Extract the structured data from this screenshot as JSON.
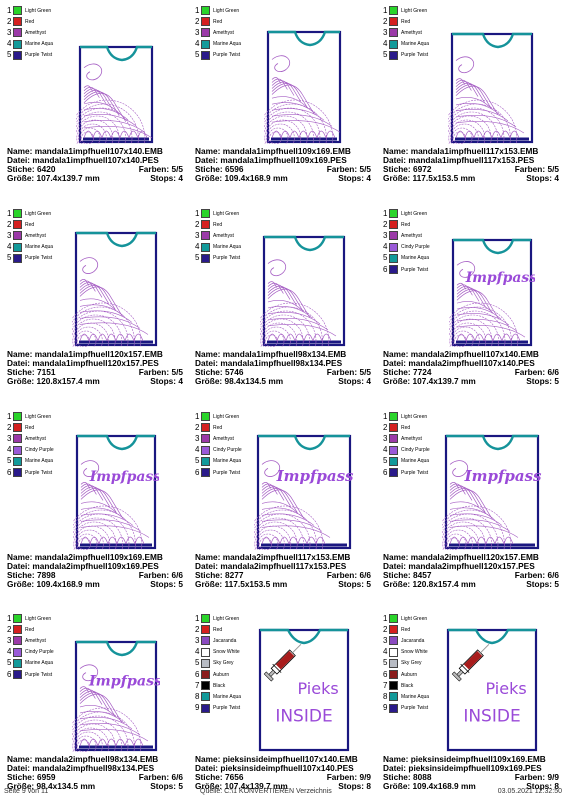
{
  "labels": {
    "name": "Name:",
    "datei": "Datei:",
    "stiche": "Stiche:",
    "farben": "Farben:",
    "groesse": "Größe:",
    "stops": "Stops:"
  },
  "colors": {
    "Light Green": "#2ad42a",
    "Red": "#d42020",
    "Amethyst": "#9b3aa8",
    "Marine Aqua": "#139a9a",
    "Purple Twist": "#2a1a8a",
    "Cindy Purple": "#9a5ad8",
    "Jacaranda": "#8a4ac0",
    "Snow White": "#ffffff",
    "Sky Grey": "#b8bcc4",
    "Auburn": "#8a1c1c",
    "Black": "#000000"
  },
  "footer": {
    "page": "Seite 9 von 11",
    "source": "Quelle: C:\\1 KONVERTIEREN Verzeichnis",
    "date": "03.05.2021 12:32:50"
  },
  "cells": [
    {
      "legend": [
        "Light Green",
        "Red",
        "Amethyst",
        "Marine Aqua",
        "Purple Twist"
      ],
      "type": "m1",
      "w": 72,
      "h": 95,
      "name": "mandala1impfhuell107x140.EMB",
      "datei": "mandala1impfhuell107x140.PES",
      "stiche": "6420",
      "farben": "5/5",
      "groesse": "107.4x139.7 mm",
      "stops": "4"
    },
    {
      "legend": [
        "Light Green",
        "Red",
        "Amethyst",
        "Marine Aqua",
        "Purple Twist"
      ],
      "type": "m1",
      "w": 72,
      "h": 110,
      "name": "mandala1impfhuell109x169.EMB",
      "datei": "mandala1impfhuell109x169.PES",
      "stiche": "6596",
      "farben": "5/5",
      "groesse": "109.4x168.9 mm",
      "stops": "4"
    },
    {
      "legend": [
        "Light Green",
        "Red",
        "Amethyst",
        "Marine Aqua",
        "Purple Twist"
      ],
      "type": "m1",
      "w": 80,
      "h": 108,
      "name": "mandala1impfhuell117x153.EMB",
      "datei": "mandala1impfhuell117x153.PES",
      "stiche": "6972",
      "farben": "5/5",
      "groesse": "117.5x153.5 mm",
      "stops": "4"
    },
    {
      "legend": [
        "Light Green",
        "Red",
        "Amethyst",
        "Marine Aqua",
        "Purple Twist"
      ],
      "type": "m1",
      "w": 80,
      "h": 112,
      "name": "mandala1impfhuell120x157.EMB",
      "datei": "mandala1impfhuell120x157.PES",
      "stiche": "7151",
      "farben": "5/5",
      "groesse": "120.8x157.4 mm",
      "stops": "4"
    },
    {
      "legend": [
        "Light Green",
        "Red",
        "Amethyst",
        "Marine Aqua",
        "Purple Twist"
      ],
      "type": "m1",
      "w": 80,
      "h": 108,
      "name": "mandala1impfhuell98x134.EMB",
      "datei": "mandala1impfhuell98x134.PES",
      "stiche": "5746",
      "farben": "5/5",
      "groesse": "98.4x134.5 mm",
      "stops": "4"
    },
    {
      "legend": [
        "Light Green",
        "Red",
        "Amethyst",
        "Cindy Purple",
        "Marine Aqua",
        "Purple Twist"
      ],
      "type": "m2",
      "text": "Impfpass",
      "w": 78,
      "h": 105,
      "name": "mandala2impfhuell107x140.EMB",
      "datei": "mandala2impfhuell107x140.PES",
      "stiche": "7724",
      "farben": "6/6",
      "groesse": "107.4x139.7 mm",
      "stops": "5"
    },
    {
      "legend": [
        "Light Green",
        "Red",
        "Amethyst",
        "Cindy Purple",
        "Marine Aqua",
        "Purple Twist"
      ],
      "type": "m2",
      "text": "Impfpass",
      "w": 78,
      "h": 112,
      "name": "mandala2impfhuell109x169.EMB",
      "datei": "mandala2impfhuell109x169.PES",
      "stiche": "7898",
      "farben": "6/6",
      "groesse": "109.4x168.9 mm",
      "stops": "5"
    },
    {
      "legend": [
        "Light Green",
        "Red",
        "Amethyst",
        "Cindy Purple",
        "Marine Aqua",
        "Purple Twist"
      ],
      "type": "m2",
      "text": "Impfpass",
      "w": 92,
      "h": 112,
      "name": "mandala2impfhuell117x153.EMB",
      "datei": "mandala2impfhuell117x153.PES",
      "stiche": "8277",
      "farben": "6/6",
      "groesse": "117.5x153.5 mm",
      "stops": "5"
    },
    {
      "legend": [
        "Light Green",
        "Red",
        "Amethyst",
        "Cindy Purple",
        "Marine Aqua",
        "Purple Twist"
      ],
      "type": "m2",
      "text": "Impfpass",
      "w": 92,
      "h": 112,
      "name": "mandala2impfhuell120x157.EMB",
      "datei": "mandala2impfhuell120x157.PES",
      "stiche": "8457",
      "farben": "6/6",
      "groesse": "120.8x157.4 mm",
      "stops": "5"
    },
    {
      "legend": [
        "Light Green",
        "Red",
        "Amethyst",
        "Cindy Purple",
        "Marine Aqua",
        "Purple Twist"
      ],
      "type": "m2",
      "text": "Impfpass",
      "w": 80,
      "h": 108,
      "name": "mandala2impfhuell98x134.EMB",
      "datei": "mandala2impfhuell98x134.PES",
      "stiche": "6959",
      "farben": "6/6",
      "groesse": "98.4x134.5 mm",
      "stops": "5"
    },
    {
      "legend": [
        "Light Green",
        "Red",
        "Jacaranda",
        "Snow White",
        "Sky Grey",
        "Auburn",
        "Black",
        "Marine Aqua",
        "Purple Twist"
      ],
      "type": "pieks",
      "text1": "Pieks",
      "text2": "INSIDE",
      "w": 88,
      "h": 120,
      "name": "pieksinsideimpfhuell107x140.EMB",
      "datei": "pieksinsideimpfhuell107x140.PES",
      "stiche": "7656",
      "farben": "9/9",
      "groesse": "107.4x139.7 mm",
      "stops": "8"
    },
    {
      "legend": [
        "Light Green",
        "Red",
        "Jacaranda",
        "Snow White",
        "Sky Grey",
        "Auburn",
        "Black",
        "Marine Aqua",
        "Purple Twist"
      ],
      "type": "pieks",
      "text1": "Pieks",
      "text2": "INSIDE",
      "w": 88,
      "h": 120,
      "name": "pieksinsideimpfhuell109x169.EMB",
      "datei": "pieksinsideimpfhuell109x169.PES",
      "stiche": "8088",
      "farben": "9/9",
      "groesse": "109.4x168.9 mm",
      "stops": "8"
    }
  ]
}
